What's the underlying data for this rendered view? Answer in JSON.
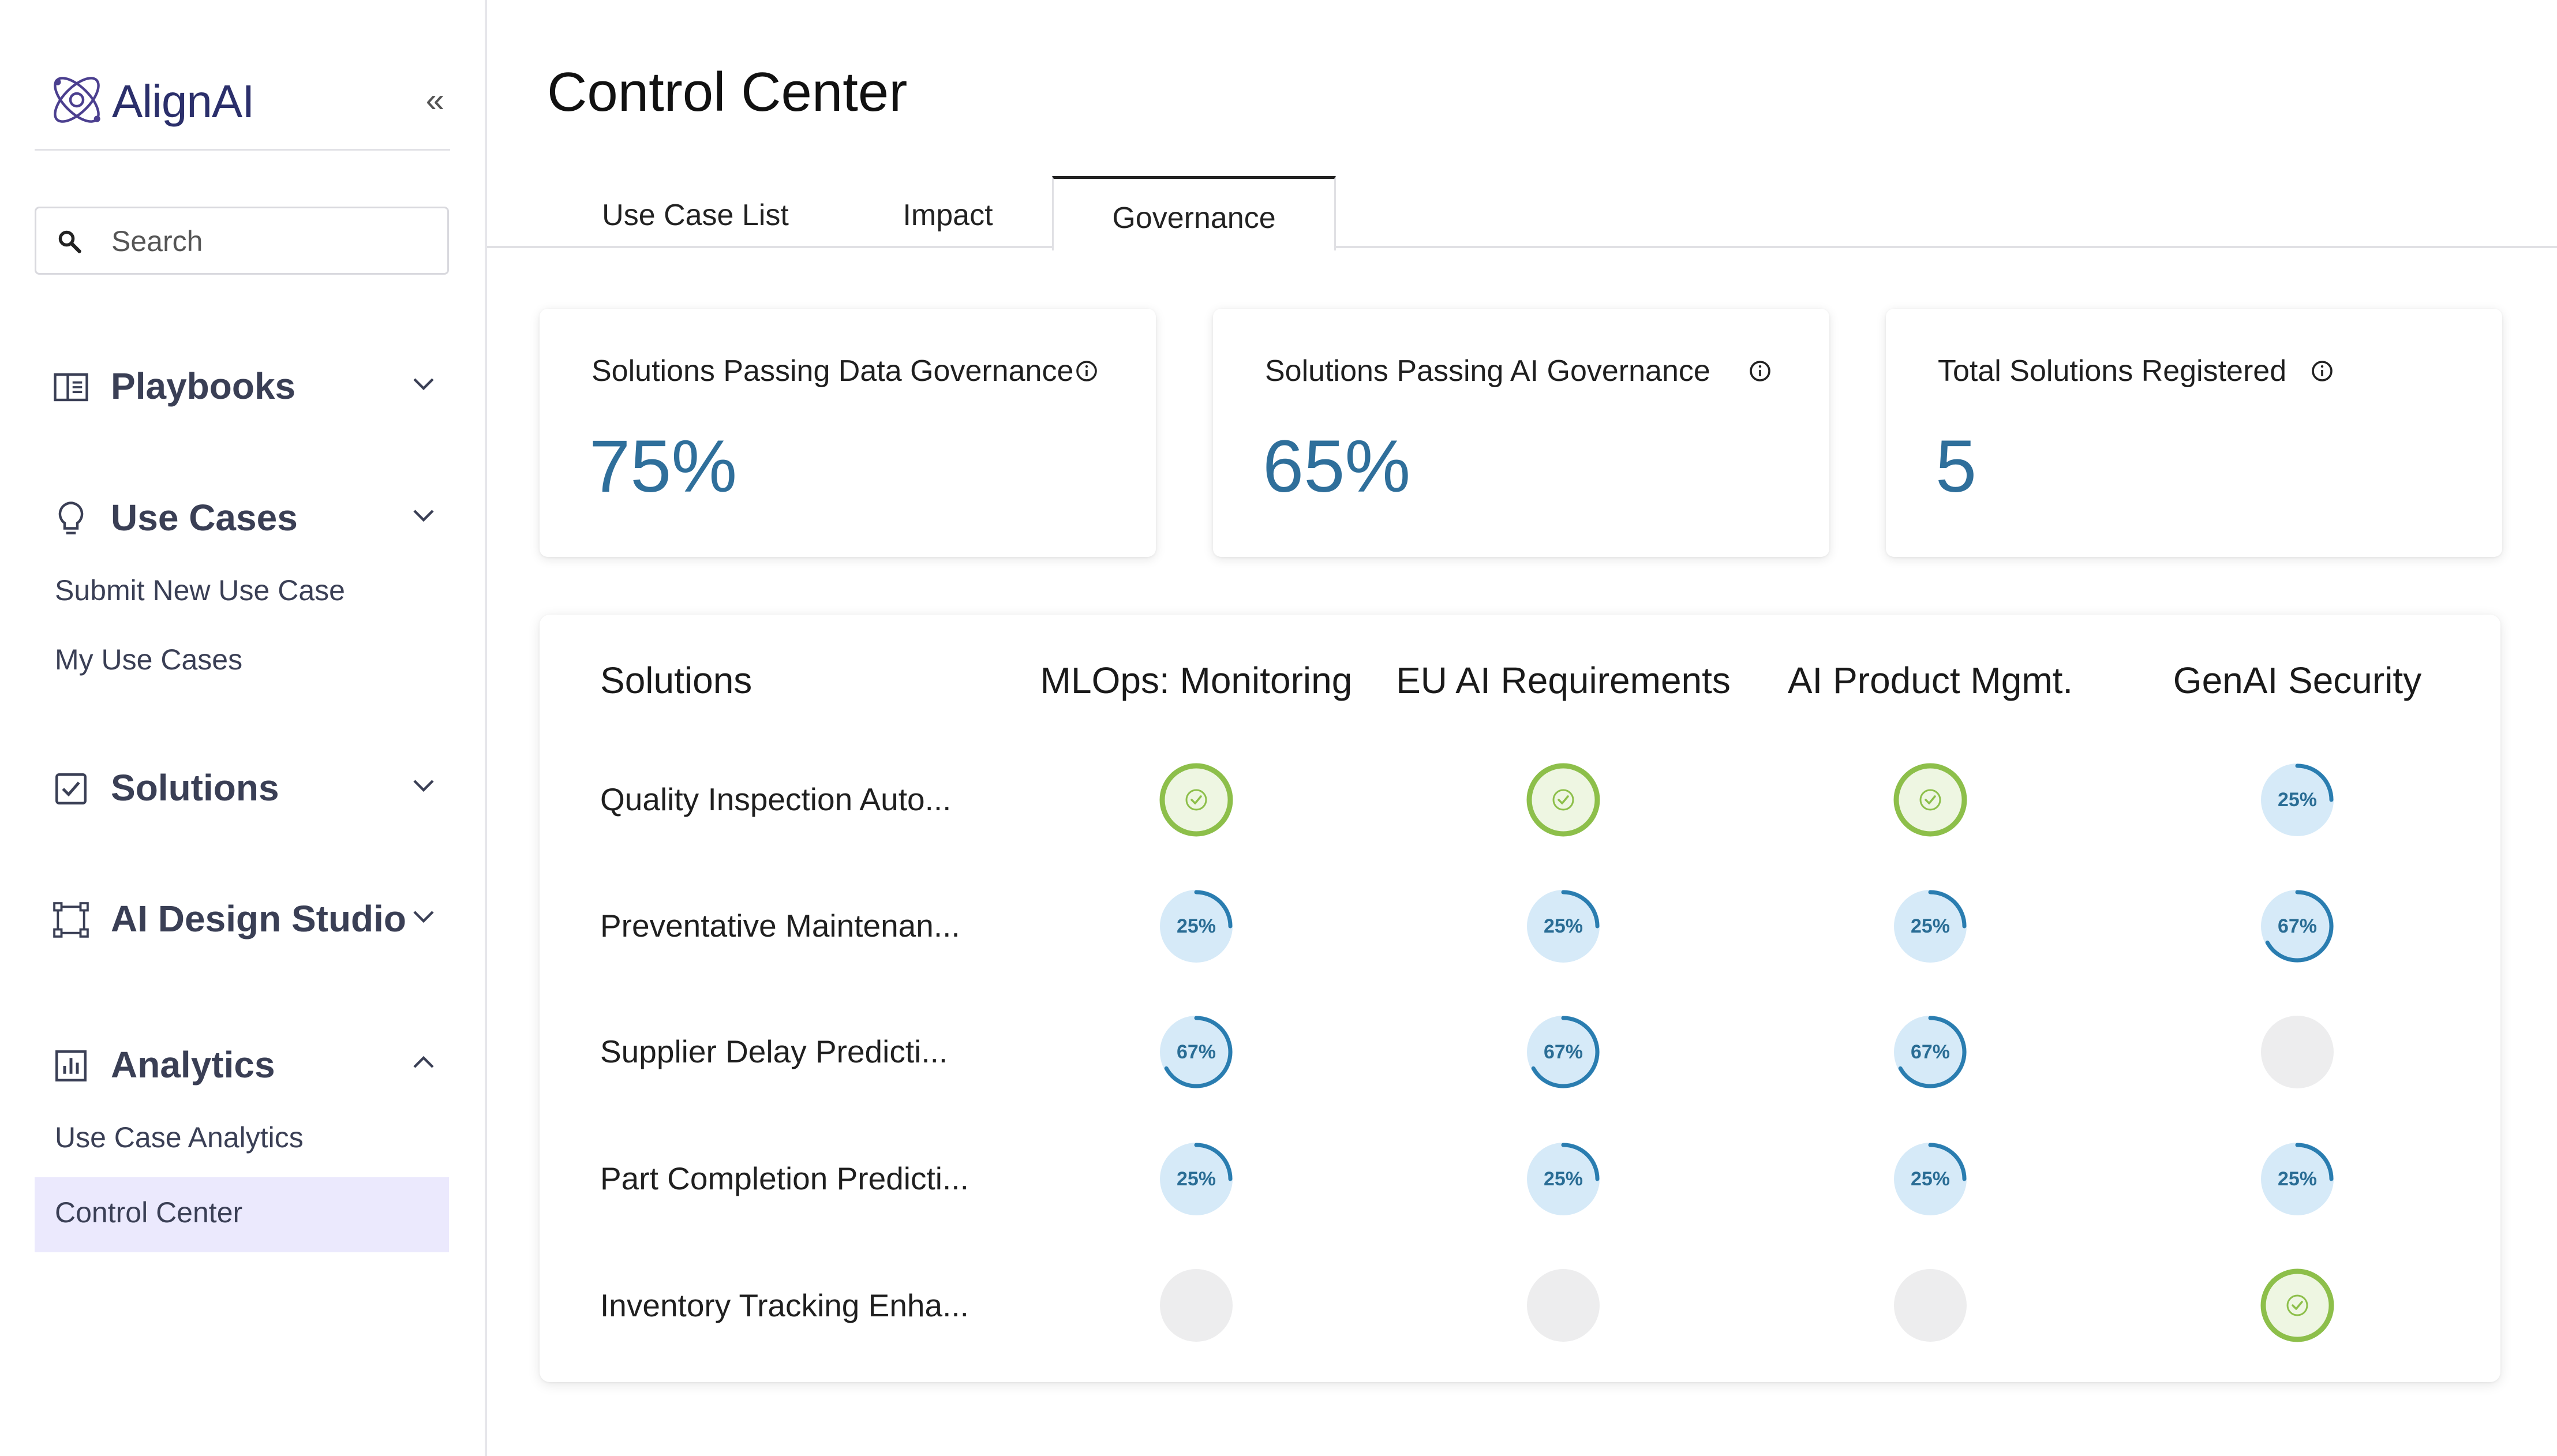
{
  "brand": {
    "name": "AlignAI",
    "collapse_icon": "«"
  },
  "search": {
    "placeholder": "Search"
  },
  "sidebar": {
    "sections": [
      {
        "label": "Playbooks",
        "icon": "book-icon",
        "expanded": false
      },
      {
        "label": "Use Cases",
        "icon": "lightbulb-icon",
        "expanded": true
      },
      {
        "label": "Solutions",
        "icon": "checkbox-icon",
        "expanded": false
      },
      {
        "label": "AI Design Studio",
        "icon": "vector-nodes-icon",
        "expanded": false
      },
      {
        "label": "Analytics",
        "icon": "bar-chart-icon",
        "expanded": true
      }
    ],
    "use_cases_items": [
      "Submit New Use Case",
      "My Use Cases"
    ],
    "analytics_items": [
      "Use Case Analytics",
      "Control Center"
    ],
    "active_item": "Control Center"
  },
  "page": {
    "title": "Control Center"
  },
  "tabs": [
    {
      "label": "Use Case List",
      "active": false
    },
    {
      "label": "Impact",
      "active": false
    },
    {
      "label": "Governance",
      "active": true
    }
  ],
  "cards": [
    {
      "title": "Solutions Passing Data Governance",
      "value": "75%"
    },
    {
      "title": "Solutions Passing AI Governance",
      "value": "65%"
    },
    {
      "title": "Total Solutions Registered",
      "value": "5"
    }
  ],
  "table": {
    "row_header": "Solutions",
    "columns": [
      "MLOps: Monitoring",
      "EU AI Requirements",
      "AI Product Mgmt.",
      "GenAI Security"
    ],
    "rows": [
      {
        "name": "Quality Inspection Auto...",
        "cells": [
          {
            "status": "complete"
          },
          {
            "status": "complete"
          },
          {
            "status": "complete"
          },
          {
            "status": "progress",
            "label": "25%",
            "value": 25
          }
        ]
      },
      {
        "name": "Preventative Maintenan...",
        "cells": [
          {
            "status": "progress",
            "label": "25%",
            "value": 25
          },
          {
            "status": "progress",
            "label": "25%",
            "value": 25
          },
          {
            "status": "progress",
            "label": "25%",
            "value": 25
          },
          {
            "status": "progress",
            "label": "67%",
            "value": 67
          }
        ]
      },
      {
        "name": "Supplier Delay Predicti...",
        "cells": [
          {
            "status": "progress",
            "label": "67%",
            "value": 67
          },
          {
            "status": "progress",
            "label": "67%",
            "value": 67
          },
          {
            "status": "progress",
            "label": "67%",
            "value": 67
          },
          {
            "status": "empty"
          }
        ]
      },
      {
        "name": "Part Completion Predicti...",
        "cells": [
          {
            "status": "progress",
            "label": "25%",
            "value": 25
          },
          {
            "status": "progress",
            "label": "25%",
            "value": 25
          },
          {
            "status": "progress",
            "label": "25%",
            "value": 25
          },
          {
            "status": "progress",
            "label": "25%",
            "value": 25
          }
        ]
      },
      {
        "name": "Inventory Tracking Enha...",
        "cells": [
          {
            "status": "empty"
          },
          {
            "status": "empty"
          },
          {
            "status": "empty"
          },
          {
            "status": "complete"
          }
        ]
      }
    ]
  },
  "colors": {
    "accent_value": "#2f6f9b",
    "progress_ring": "#2a7db0",
    "progress_fill": "#d6eaf8",
    "complete_ring": "#8dbf4a",
    "complete_fill": "#eef6e2",
    "empty_fill": "#ededee",
    "active_nav_bg": "#ebe9fd"
  }
}
